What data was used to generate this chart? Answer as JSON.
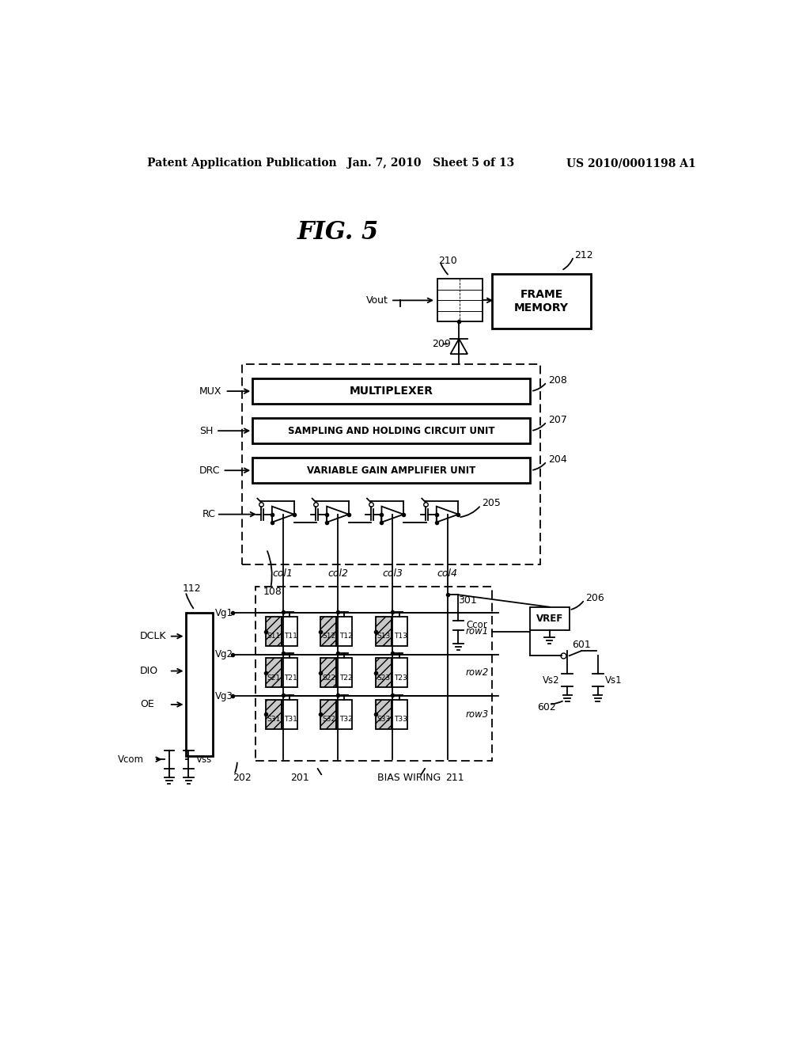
{
  "background": "#ffffff",
  "header_left": "Patent Application Publication",
  "header_center": "Jan. 7, 2010   Sheet 5 of 13",
  "header_right": "US 2010/0001198 A1",
  "figure_title": "FIG. 5",
  "fig_width": 10.24,
  "fig_height": 13.2
}
